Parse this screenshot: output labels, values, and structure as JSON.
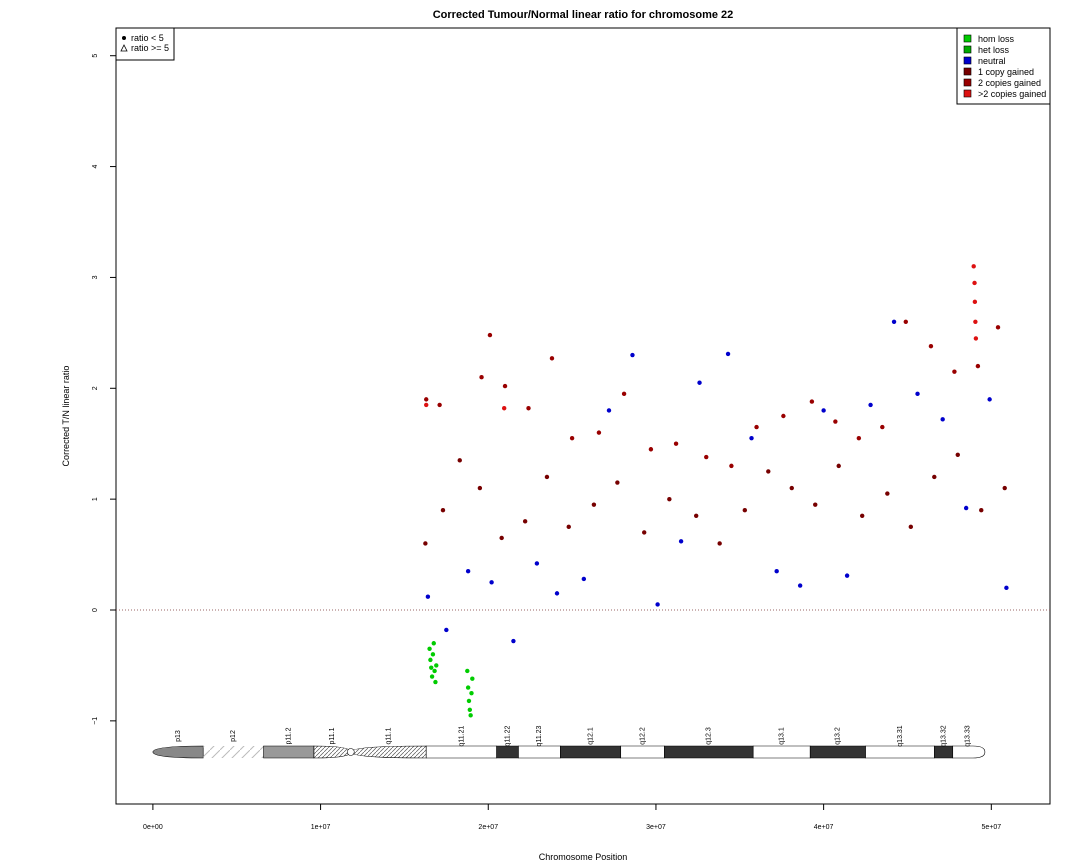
{
  "chart_data": {
    "type": "scatter",
    "title": "Corrected Tumour/Normal linear ratio for chromosome  22",
    "xlabel": "Chromosome Position",
    "ylabel": "Corrected T/N linear ratio",
    "xlim": [
      -2200000,
      53500000
    ],
    "ylim": [
      -1.75,
      5.25
    ],
    "x_ticks": [
      0,
      10000000,
      20000000,
      30000000,
      40000000,
      50000000
    ],
    "x_tick_labels": [
      "0e+00",
      "1e+07",
      "2e+07",
      "3e+07",
      "4e+07",
      "5e+07"
    ],
    "y_ticks": [
      -1,
      0,
      1,
      2,
      3,
      4,
      5
    ],
    "y_tick_labels": [
      "−1",
      "0",
      "1",
      "2",
      "3",
      "4",
      "5"
    ],
    "reference_line": {
      "y": 0,
      "style": "dotted"
    },
    "shape_legend": {
      "placement": "top-left",
      "entries": [
        {
          "label": "ratio < 5",
          "marker": "filled-circle"
        },
        {
          "label": "ratio >= 5",
          "marker": "open-triangle"
        }
      ]
    },
    "color_legend": {
      "placement": "top-right",
      "entries": [
        {
          "label": "hom loss",
          "color": "#00cc00"
        },
        {
          "label": "het loss",
          "color": "#00aa00"
        },
        {
          "label": "neutral",
          "color": "#0000cc"
        },
        {
          "label": "1 copy gained",
          "color": "#770000"
        },
        {
          "label": "2 copies gained",
          "color": "#990000"
        },
        {
          "label": ">2 copies gained",
          "color": "#dd1111"
        }
      ]
    },
    "ideogram": {
      "bands": [
        {
          "name": "p13",
          "start": 0,
          "end": 3000000,
          "fill": "#888888",
          "shape": "p-end"
        },
        {
          "name": "p12",
          "start": 3000000,
          "end": 6600000,
          "fill": "stalk"
        },
        {
          "name": "p11.2",
          "start": 6600000,
          "end": 9600000,
          "fill": "#999999"
        },
        {
          "name": "p11.1",
          "start": 9600000,
          "end": 11800000,
          "fill": "hatch",
          "shape": "cen-left"
        },
        {
          "name": "q11.1",
          "start": 11800000,
          "end": 16300000,
          "fill": "hatch",
          "shape": "cen-right"
        },
        {
          "name": "q11.21",
          "start": 16300000,
          "end": 20500000,
          "fill": "#ffffff"
        },
        {
          "name": "q11.22",
          "start": 20500000,
          "end": 21800000,
          "fill": "#333333"
        },
        {
          "name": "q11.23",
          "start": 21800000,
          "end": 24300000,
          "fill": "#ffffff"
        },
        {
          "name": "q12.1",
          "start": 24300000,
          "end": 27900000,
          "fill": "#333333"
        },
        {
          "name": "q12.2",
          "start": 27900000,
          "end": 30500000,
          "fill": "#ffffff"
        },
        {
          "name": "q12.3",
          "start": 30500000,
          "end": 35800000,
          "fill": "#333333"
        },
        {
          "name": "q13.1",
          "start": 35800000,
          "end": 39200000,
          "fill": "#ffffff"
        },
        {
          "name": "q13.2",
          "start": 39200000,
          "end": 42500000,
          "fill": "#333333"
        },
        {
          "name": "q13.31",
          "start": 42500000,
          "end": 46600000,
          "fill": "#ffffff"
        },
        {
          "name": "q13.32",
          "start": 46600000,
          "end": 47700000,
          "fill": "#333333"
        },
        {
          "name": "q13.33",
          "start": 47700000,
          "end": 49500000,
          "fill": "#ffffff",
          "shape": "q-end"
        }
      ]
    },
    "series": [
      {
        "name": "hom loss",
        "color": "#00cc00",
        "x": [
          16500000,
          16550000,
          16600000,
          16650000,
          16700000,
          16750000,
          16800000,
          16850000,
          16900000,
          18750000,
          18800000,
          18850000,
          18900000,
          18950000,
          19000000,
          19050000
        ],
        "y": [
          -0.35,
          -0.45,
          -0.52,
          -0.6,
          -0.4,
          -0.3,
          -0.55,
          -0.65,
          -0.5,
          -0.55,
          -0.7,
          -0.82,
          -0.9,
          -0.95,
          -0.75,
          -0.62
        ]
      },
      {
        "name": "neutral",
        "color": "#0000cc",
        "x": [
          16400000,
          17500000,
          18800000,
          20200000,
          21500000,
          22900000,
          24100000,
          25700000,
          27200000,
          28600000,
          30100000,
          31500000,
          32600000,
          34300000,
          35700000,
          37200000,
          38600000,
          40000000,
          41400000,
          42800000,
          44200000,
          45600000,
          47100000,
          48500000,
          49900000,
          50900000
        ],
        "y": [
          0.12,
          -0.18,
          0.35,
          0.25,
          -0.28,
          0.42,
          0.15,
          0.28,
          1.8,
          2.3,
          0.05,
          0.62,
          2.05,
          2.31,
          1.55,
          0.35,
          0.22,
          1.8,
          0.31,
          1.85,
          2.6,
          1.95,
          1.72,
          0.92,
          1.9,
          0.2
        ]
      },
      {
        "name": "1 copy gained",
        "color": "#770000",
        "x": [
          16250000,
          17300000,
          18300000,
          19500000,
          20800000,
          22200000,
          23500000,
          24800000,
          26300000,
          27700000,
          29300000,
          30800000,
          32400000,
          33800000,
          35300000,
          36700000,
          38100000,
          39500000,
          40900000,
          42300000,
          43800000,
          45200000,
          46600000,
          48000000,
          49400000,
          50800000
        ],
        "y": [
          0.6,
          0.9,
          1.35,
          1.1,
          0.65,
          0.8,
          1.2,
          0.75,
          0.95,
          1.15,
          0.7,
          1.0,
          0.85,
          0.6,
          0.9,
          1.25,
          1.1,
          0.95,
          1.3,
          0.85,
          1.05,
          0.75,
          1.2,
          1.4,
          0.9,
          1.1
        ]
      },
      {
        "name": "2 copies gained",
        "color": "#990000",
        "x": [
          16300000,
          17100000,
          19600000,
          20100000,
          21000000,
          22400000,
          23800000,
          25000000,
          26600000,
          28100000,
          29700000,
          31200000,
          33000000,
          34500000,
          36000000,
          37600000,
          39300000,
          40700000,
          42100000,
          43500000,
          44900000,
          46400000,
          47800000,
          49200000,
          50400000
        ],
        "y": [
          1.9,
          1.85,
          2.1,
          2.48,
          2.02,
          1.82,
          2.27,
          1.55,
          1.6,
          1.95,
          1.45,
          1.5,
          1.38,
          1.3,
          1.65,
          1.75,
          1.88,
          1.7,
          1.55,
          1.65,
          2.6,
          2.38,
          2.15,
          2.2,
          2.55
        ]
      },
      {
        "name": ">2 copies gained",
        "color": "#dd1111",
        "x": [
          16300000,
          20950000,
          48950000,
          49000000,
          49020000,
          49050000,
          49080000
        ],
        "y": [
          1.85,
          1.82,
          3.1,
          2.95,
          2.78,
          2.6,
          2.45
        ]
      }
    ]
  }
}
